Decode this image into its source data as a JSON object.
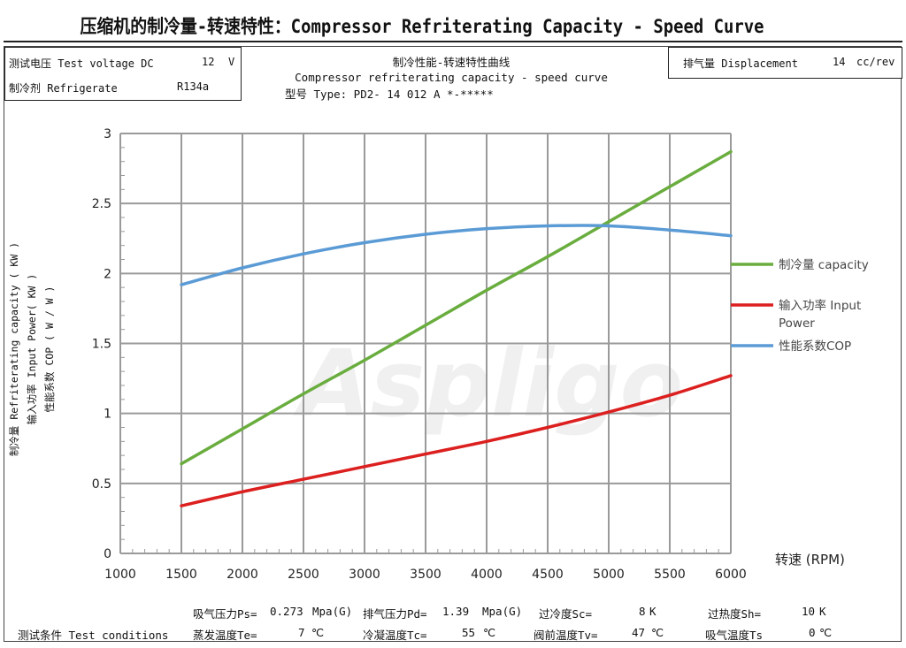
{
  "page_title": "压缩机的制冷量-转速特性：Compressor Refriterating Capacity - Speed Curve",
  "info_left": {
    "voltage_label": "测试电压 Test voltage DC",
    "voltage_value": "12",
    "voltage_unit": "V",
    "refrigerant_label": "制冷剂  Refrigerate",
    "refrigerant_value": "R134a"
  },
  "info_right": {
    "displacement_label": "排气量 Displacement",
    "displacement_value": "14",
    "displacement_unit": "cc/rev"
  },
  "chart_header": {
    "title_cn": "制冷性能-转速特性曲线",
    "title_en": "Compressor refriterating capacity - speed curve",
    "model": "型号 Type: PD2-  14 012  A *-*****"
  },
  "watermark": "Aspligo",
  "chart_data": {
    "type": "line",
    "xlabel": "转速 (RPM)",
    "ylabel_lines": [
      "制冷量 Refriterating capacity  ( KW )",
      "输入功率 Input Power( KW )",
      "性能系数 COP ( W / W )"
    ],
    "xlim": [
      1000,
      6000
    ],
    "ylim": [
      0,
      3
    ],
    "x_ticks": [
      "1000",
      "1500",
      "2000",
      "2500",
      "3000",
      "3500",
      "4000",
      "4500",
      "5000",
      "5500",
      "6000"
    ],
    "y_ticks": [
      "0",
      "0.5",
      "1",
      "1.5",
      "2",
      "2.5",
      "3"
    ],
    "grid": true,
    "legend_position": "right",
    "series": [
      {
        "name": "制冷量 capacity",
        "color": "#6aad3f",
        "x": [
          1500,
          2000,
          2500,
          3000,
          3500,
          4000,
          4500,
          5000,
          5500,
          6000
        ],
        "values": [
          0.64,
          0.89,
          1.14,
          1.38,
          1.63,
          1.88,
          2.12,
          2.37,
          2.62,
          2.87
        ]
      },
      {
        "name": "输入功率 Input Power",
        "color": "#dc1f1f",
        "x": [
          1500,
          2000,
          2500,
          3000,
          3500,
          4000,
          4500,
          5000,
          5500,
          6000
        ],
        "values": [
          0.34,
          0.44,
          0.53,
          0.62,
          0.71,
          0.8,
          0.9,
          1.01,
          1.13,
          1.27
        ]
      },
      {
        "name": "性能系数COP",
        "color": "#5b9bd5",
        "x": [
          1500,
          2000,
          2500,
          3000,
          3500,
          4000,
          4500,
          5000,
          5500,
          6000
        ],
        "values": [
          1.92,
          2.04,
          2.14,
          2.22,
          2.28,
          2.32,
          2.34,
          2.34,
          2.31,
          2.27
        ]
      }
    ]
  },
  "conditions": {
    "row1": [
      {
        "label": "吸气压力Ps=",
        "value": "0.273",
        "unit": "Mpa(G)"
      },
      {
        "label": "排气压力Pd=",
        "value": "1.39",
        "unit": "Mpa(G)"
      },
      {
        "label": "过冷度Sc=",
        "value": "8",
        "unit": "K"
      },
      {
        "label": "过热度Sh=",
        "value": "10",
        "unit": "K"
      }
    ],
    "row2_label": "测试条件 Test conditions",
    "row2": [
      {
        "label": "蒸发温度Te=",
        "value": "7",
        "unit": "℃"
      },
      {
        "label": "冷凝温度Tc=",
        "value": "55",
        "unit": "℃"
      },
      {
        "label": "阀前温度Tv=",
        "value": "47",
        "unit": "℃"
      },
      {
        "label": "吸气温度Ts",
        "value": "0",
        "unit": "℃"
      }
    ]
  }
}
